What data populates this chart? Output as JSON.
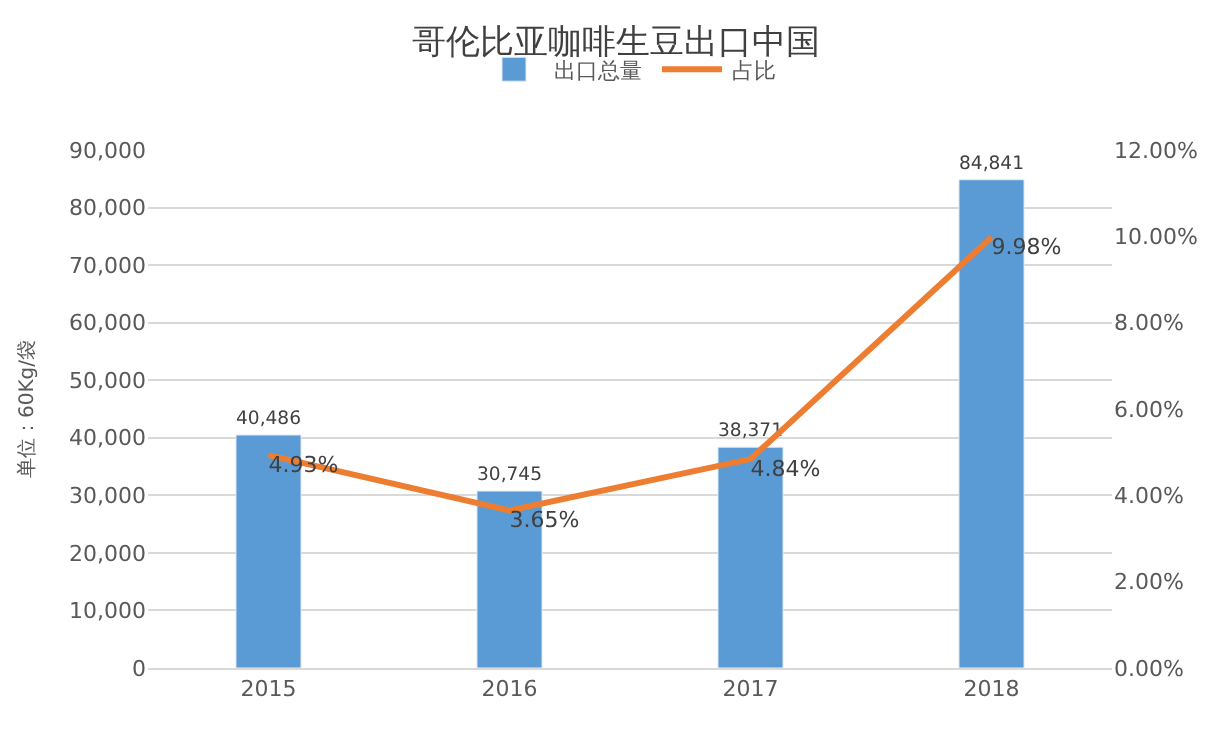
{
  "chart_data": {
    "type": "bar",
    "title": "哥伦比亚咖啡生豆出口中国",
    "ylabel": "单位：60Kg/袋",
    "categories": [
      "2015",
      "2016",
      "2017",
      "2018"
    ],
    "series": [
      {
        "name": "出口总量",
        "color": "#5b9bd5",
        "values": [
          40486,
          30745,
          38371,
          84841
        ],
        "value_labels": [
          "40,486",
          "30,745",
          "38,371",
          "84,841"
        ]
      },
      {
        "name": "占比",
        "type": "line",
        "axis": "y2",
        "color": "#ed7d31",
        "values": [
          4.93,
          3.65,
          4.84,
          9.98
        ],
        "value_labels": [
          "4.93%",
          "3.65%",
          "4.84%",
          "9.98%"
        ],
        "marker": "none",
        "line_style": "solid"
      }
    ],
    "ylim": [
      0,
      90000
    ],
    "yticks": [
      {
        "value": 0,
        "label": "0"
      },
      {
        "value": 10000,
        "label": "10,000"
      },
      {
        "value": 20000,
        "label": "20,000"
      },
      {
        "value": 30000,
        "label": "30,000"
      },
      {
        "value": 40000,
        "label": "40,000"
      },
      {
        "value": 50000,
        "label": "50,000"
      },
      {
        "value": 60000,
        "label": "60,000"
      },
      {
        "value": 70000,
        "label": "70,000"
      },
      {
        "value": 80000,
        "label": "80,000"
      },
      {
        "value": 90000,
        "label": "90,000"
      }
    ],
    "y2lim": [
      0,
      12
    ],
    "y2ticks": [
      {
        "value": 0,
        "label": "0.00%"
      },
      {
        "value": 2,
        "label": "2.00%"
      },
      {
        "value": 4,
        "label": "4.00%"
      },
      {
        "value": 6,
        "label": "6.00%"
      },
      {
        "value": 8,
        "label": "8.00%"
      },
      {
        "value": 10,
        "label": "10.00%"
      },
      {
        "value": 12,
        "label": "12.00%"
      }
    ],
    "grid": "y",
    "legend": "top"
  }
}
